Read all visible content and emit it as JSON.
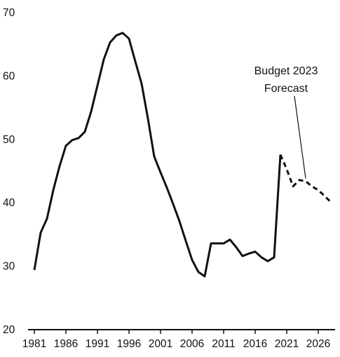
{
  "chart_data": {
    "type": "line",
    "title": "",
    "xlabel": "",
    "ylabel": "",
    "ylim": [
      20,
      70
    ],
    "xlim": [
      1981,
      2028
    ],
    "grid": false,
    "legend": "none",
    "yticks": [
      20,
      30,
      40,
      50,
      60,
      70
    ],
    "xticks": [
      "1981",
      "1986",
      "1991",
      "1996",
      "2001",
      "2006",
      "2011",
      "2016",
      "2021",
      "2026"
    ],
    "series": [
      {
        "style": "solid",
        "color": "#111111",
        "x": [
          1981,
          1982,
          1983,
          1984,
          1985,
          1986,
          1987,
          1988,
          1989,
          1990,
          1991,
          1992,
          1993,
          1994,
          1995,
          1996,
          1997,
          1998,
          1999,
          2000,
          2001,
          2002,
          2003,
          2004,
          2005,
          2006,
          2007,
          2008,
          2009,
          2010,
          2011,
          2012,
          2013,
          2014,
          2015,
          2016,
          2017,
          2018,
          2019,
          2020
        ],
        "y": [
          29.4,
          35.3,
          37.5,
          42.0,
          45.8,
          49.0,
          49.9,
          50.2,
          51.2,
          54.4,
          58.5,
          62.6,
          65.3,
          66.4,
          66.8,
          65.9,
          62.3,
          58.8,
          53.3,
          47.3,
          44.8,
          42.4,
          39.8,
          37.1,
          34.0,
          31.0,
          29.1,
          28.4,
          33.6,
          33.6,
          33.6,
          34.2,
          33.0,
          31.6,
          32.0,
          32.3,
          31.4,
          30.8,
          31.4,
          47.6
        ]
      },
      {
        "style": "dashed",
        "color": "#111111",
        "x": [
          2020,
          2021,
          2022,
          2023,
          2024,
          2025,
          2026,
          2027,
          2028
        ],
        "y": [
          47.6,
          45.3,
          42.6,
          43.6,
          43.4,
          42.6,
          42.0,
          41.1,
          40.1
        ]
      }
    ],
    "annotations": [
      {
        "lines": [
          "Budget 2023",
          "Forecast"
        ],
        "points_to": {
          "x": 2024,
          "y": 43.4
        }
      }
    ]
  }
}
